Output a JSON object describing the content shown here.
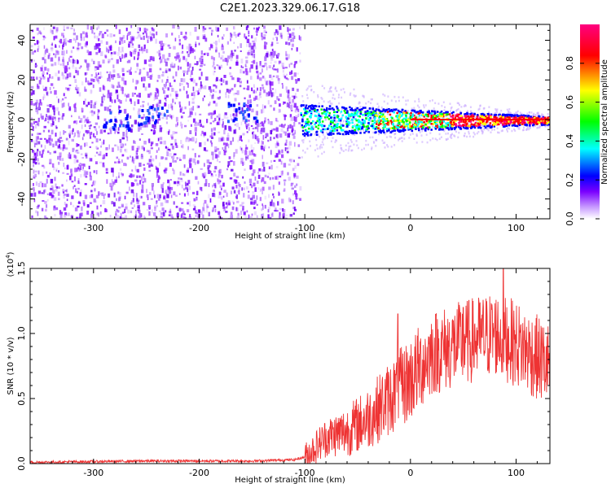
{
  "title": "C2E1.2023.329.06.17.G18",
  "chart_data": [
    {
      "type": "heatmap",
      "xlabel": "Height of straight line (km)",
      "ylabel": "Frequency (Hz)",
      "xlim": [
        -360,
        132
      ],
      "ylim": [
        -50,
        48
      ],
      "xticks": [
        -300,
        -200,
        -100,
        0,
        100
      ],
      "yticks": [
        -40,
        -20,
        0,
        20,
        40
      ],
      "grid": false,
      "colorbar": {
        "label": "Normalized spectral amplitude",
        "range": [
          0,
          1
        ],
        "ticks": [
          "0.0",
          "0.2",
          "0.4",
          "0.6",
          "0.8"
        ],
        "colors": [
          "#ffffff",
          "#7a00ff",
          "#0000ff",
          "#00ffff",
          "#00ff00",
          "#ffff00",
          "#ff0000",
          "#ff0080"
        ]
      },
      "signal_band": {
        "noise_region_x": [
          -360,
          -105
        ],
        "signal_start_x": -105,
        "center_freq_hz": 0,
        "halfwidth_at_start_hz": 8,
        "halfwidth_at_end_hz": 2
      }
    },
    {
      "type": "line",
      "xlabel": "Height of straight line (km)",
      "ylabel": "SNR (10 * v/v)",
      "yscale_label": "(x10",
      "yscale_exp": "4",
      "xlim": [
        -360,
        132
      ],
      "ylim": [
        0,
        1.5
      ],
      "xticks": [
        -300,
        -200,
        -100,
        0,
        100
      ],
      "yticks": [
        "0.0",
        "0.5",
        "1.0",
        "1.5"
      ],
      "grid": false,
      "series": [
        {
          "color": "#ee3333",
          "profile": [
            {
              "x": -360,
              "y": 0.01
            },
            {
              "x": -250,
              "y": 0.02
            },
            {
              "x": -150,
              "y": 0.02
            },
            {
              "x": -110,
              "y": 0.03
            },
            {
              "x": -100,
              "y": 0.05
            },
            {
              "x": -80,
              "y": 0.2
            },
            {
              "x": -60,
              "y": 0.25
            },
            {
              "x": -40,
              "y": 0.35
            },
            {
              "x": -20,
              "y": 0.5
            },
            {
              "x": 0,
              "y": 0.65
            },
            {
              "x": 20,
              "y": 0.85
            },
            {
              "x": 40,
              "y": 0.9
            },
            {
              "x": 60,
              "y": 0.95
            },
            {
              "x": 80,
              "y": 1.0
            },
            {
              "x": 100,
              "y": 0.92
            },
            {
              "x": 132,
              "y": 0.75
            }
          ],
          "peaks": [
            {
              "x": -12,
              "y": 1.15
            },
            {
              "x": 50,
              "y": 1.2
            },
            {
              "x": 88,
              "y": 1.5
            }
          ]
        }
      ]
    }
  ]
}
